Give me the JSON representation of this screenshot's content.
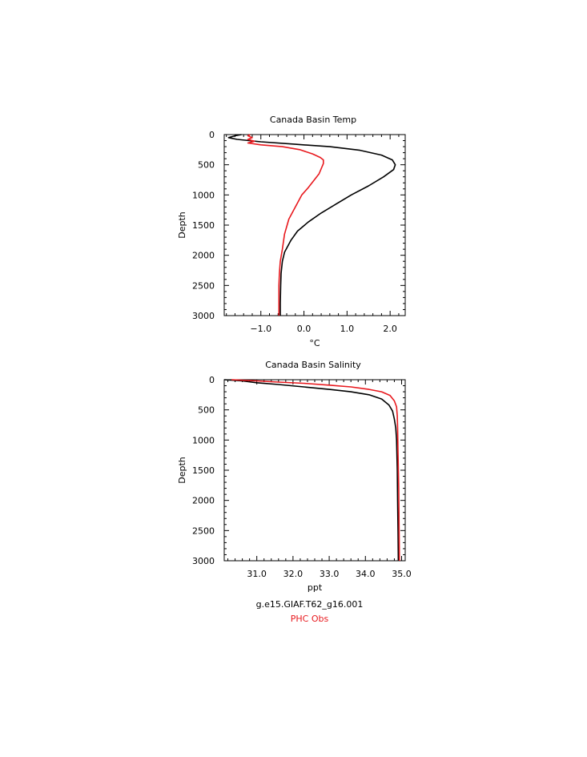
{
  "legend": {
    "model_label": "g.e15.GIAF.T62_g16.001",
    "obs_label": "PHC Obs",
    "model_color": "#000000",
    "obs_color": "#e8191e"
  },
  "chart_data": [
    {
      "type": "line",
      "title": "Canada Basin Temp",
      "xlabel": "°C",
      "ylabel": "Depth",
      "xlim": [
        -1.85,
        2.35
      ],
      "ylim": [
        3000,
        0
      ],
      "y_inverted": true,
      "xticks": [
        -1.0,
        0.0,
        1.0,
        2.0
      ],
      "xtick_labels": [
        "−1.0",
        "0.0",
        "1.0",
        "2.0"
      ],
      "yticks": [
        0,
        500,
        1000,
        1500,
        2000,
        2500,
        3000
      ],
      "ytick_labels": [
        "0",
        "500",
        "1000",
        "1500",
        "2000",
        "2500",
        "3000"
      ],
      "series": [
        {
          "name": "g.e15.GIAF.T62_g16.001",
          "color": "#000000",
          "x": [
            -1.45,
            -1.6,
            -1.75,
            -1.55,
            -1.0,
            -0.2,
            0.6,
            1.3,
            1.8,
            2.05,
            2.12,
            2.08,
            1.85,
            1.5,
            1.1,
            0.75,
            0.4,
            0.1,
            -0.15,
            -0.3,
            -0.45,
            -0.5,
            -0.53,
            -0.54,
            -0.55,
            -0.55
          ],
          "y": [
            0,
            20,
            50,
            80,
            120,
            160,
            200,
            260,
            340,
            420,
            500,
            580,
            700,
            850,
            1000,
            1150,
            1300,
            1450,
            1600,
            1750,
            1950,
            2100,
            2300,
            2500,
            2800,
            3000
          ]
        },
        {
          "name": "PHC Obs",
          "color": "#e8191e",
          "x": [
            -1.25,
            -1.3,
            -1.2,
            -1.3,
            -1.15,
            -1.3,
            -1.0,
            -0.5,
            -0.1,
            0.2,
            0.38,
            0.45,
            0.45,
            0.35,
            0.1,
            -0.05,
            -0.2,
            -0.35,
            -0.45,
            -0.5,
            -0.55,
            -0.57,
            -0.58,
            -0.58,
            -0.58
          ],
          "y": [
            0,
            20,
            50,
            80,
            110,
            140,
            170,
            200,
            250,
            320,
            380,
            420,
            480,
            650,
            880,
            1000,
            1200,
            1400,
            1650,
            1900,
            2100,
            2300,
            2500,
            2800,
            3000
          ]
        }
      ]
    },
    {
      "type": "line",
      "title": "Canada Basin Salinity",
      "xlabel": "ppt",
      "ylabel": "Depth",
      "xlim": [
        30.1,
        35.1
      ],
      "ylim": [
        3000,
        0
      ],
      "y_inverted": true,
      "xticks": [
        31.0,
        32.0,
        33.0,
        34.0,
        35.0
      ],
      "xtick_labels": [
        "31.0",
        "32.0",
        "33.0",
        "34.0",
        "35.0"
      ],
      "yticks": [
        0,
        500,
        1000,
        1500,
        2000,
        2500,
        3000
      ],
      "ytick_labels": [
        "0",
        "500",
        "1000",
        "1500",
        "2000",
        "2500",
        "3000"
      ],
      "series": [
        {
          "name": "g.e15.GIAF.T62_g16.001",
          "color": "#000000",
          "x": [
            30.1,
            30.6,
            31.0,
            31.6,
            32.3,
            33.0,
            33.6,
            34.1,
            34.45,
            34.65,
            34.75,
            34.8,
            34.84,
            34.86,
            34.88,
            34.89,
            34.9,
            34.91
          ],
          "y": [
            0,
            20,
            50,
            80,
            120,
            160,
            200,
            250,
            320,
            420,
            520,
            650,
            800,
            1000,
            1500,
            2000,
            2500,
            3000
          ]
        },
        {
          "name": "PHC Obs",
          "color": "#e8191e",
          "x": [
            30.3,
            31.0,
            31.6,
            32.3,
            33.0,
            33.6,
            34.1,
            34.45,
            34.68,
            34.8,
            34.86,
            34.88,
            34.89,
            34.9,
            34.92,
            34.93,
            34.94
          ],
          "y": [
            0,
            20,
            40,
            60,
            90,
            120,
            160,
            200,
            260,
            350,
            450,
            600,
            800,
            1200,
            1800,
            2400,
            3000
          ]
        }
      ]
    }
  ]
}
